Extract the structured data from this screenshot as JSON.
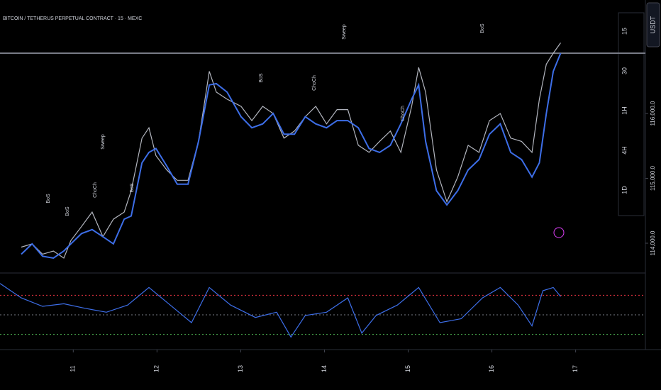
{
  "chart_data": [
    {
      "type": "line",
      "title": "BITCOIN / TETHERUS PERPETUAL CONTRACT · 15 · MEXC",
      "x": [
        6.1,
        9.2,
        12.2,
        15.3,
        18.3,
        20.3,
        23.4,
        26.4,
        29.5,
        32.5,
        35.6,
        37.6,
        40.7,
        42.7,
        44.7,
        47.8,
        50.8,
        53.9,
        56.9,
        60,
        62,
        65.1,
        69.1,
        72.2,
        75.3,
        78.3,
        81.4,
        84.4,
        87.5,
        90.5,
        93.6,
        96.6,
        99.7,
        102.7,
        105.8,
        108.8,
        111.9,
        114.9,
        118,
        120,
        122,
        125.1,
        128.1,
        131.2,
        134.2,
        137.3,
        140.3,
        143.4,
        146.4,
        149.5,
        152.5,
        154.6,
        156.6,
        158.6,
        160.7
      ],
      "series": [
        {
          "color": "#b2b5be",
          "values": [
            113940,
            113990,
            113830,
            113880,
            113770,
            114040,
            114260,
            114480,
            114100,
            114370,
            114480,
            114810,
            115620,
            115780,
            115350,
            115130,
            114970,
            114970,
            115570,
            116650,
            116330,
            116220,
            116110,
            115890,
            116110,
            116000,
            115620,
            115730,
            115950,
            116110,
            115840,
            116060,
            116060,
            115510,
            115400,
            115570,
            115730,
            115400,
            116110,
            116710,
            116330,
            115130,
            114640,
            115020,
            115510,
            115400,
            115890,
            116000,
            115620,
            115570,
            115400,
            116220,
            116760,
            116930,
            117090
          ]
        },
        {
          "color": "#3d6ee8",
          "values": [
            113830,
            113990,
            113800,
            113770,
            113880,
            113990,
            114150,
            114210,
            114100,
            113990,
            114370,
            114420,
            115240,
            115400,
            115460,
            115190,
            114910,
            114910,
            115570,
            116440,
            116460,
            116330,
            115950,
            115780,
            115840,
            116000,
            115680,
            115680,
            115950,
            115840,
            115780,
            115890,
            115890,
            115780,
            115460,
            115400,
            115510,
            115840,
            116220,
            116440,
            115570,
            114810,
            114590,
            114810,
            115130,
            115290,
            115680,
            115840,
            115400,
            115290,
            115020,
            115240,
            116000,
            116650,
            116930
          ]
        }
      ],
      "annotations": [
        "Sweep",
        "Sweep",
        "BoS",
        "BoS",
        "BoS",
        "BoS",
        "BoS",
        "ChoCh",
        "ChoCh",
        "ChoCh"
      ],
      "xlim": [
        0,
        185
      ],
      "ylim": [
        113650,
        117750
      ],
      "yticks": [
        {
          "value": 114000,
          "label": "114,000.0"
        },
        {
          "value": 115000,
          "label": "115,000.0"
        },
        {
          "value": 116000,
          "label": "116,000.0"
        }
      ],
      "levels": [
        {
          "value": 116930,
          "color": "#787b86"
        }
      ],
      "timeframes": [
        "15",
        "30",
        "1H",
        "4H",
        "1D"
      ],
      "currency": "USDT"
    },
    {
      "type": "line",
      "x": [
        0,
        6.1,
        12.2,
        18.3,
        24.4,
        30.5,
        36.6,
        42.7,
        48.8,
        54.9,
        60,
        66.1,
        73.2,
        79.3,
        83.4,
        87.5,
        93.6,
        99.7,
        103.7,
        107.8,
        113.9,
        120,
        126.1,
        132.2,
        138.3,
        143.4,
        148.5,
        152.5,
        155.6,
        158.6,
        160.7
      ],
      "series": [
        {
          "color": "#3d6ee8",
          "values": [
            98,
            76,
            63,
            67,
            60,
            54,
            65,
            92,
            65,
            38,
            92,
            65,
            46,
            54,
            16,
            49,
            54,
            76,
            22,
            49,
            65,
            92,
            38,
            44,
            76,
            92,
            65,
            33,
            87,
            92,
            78
          ]
        }
      ],
      "xlim": [
        0,
        185
      ],
      "ylim": [
        0,
        100
      ],
      "levels": [
        {
          "value": 80,
          "color": "#f23645"
        },
        {
          "value": 50,
          "color": "#787b86"
        },
        {
          "value": 20,
          "color": "#4caf50"
        }
      ],
      "xticks": [
        {
          "value": 21,
          "label": "11"
        },
        {
          "value": 45,
          "label": "12"
        },
        {
          "value": 69,
          "label": "13"
        },
        {
          "value": 93,
          "label": "14"
        },
        {
          "value": 117,
          "label": "15"
        },
        {
          "value": 141,
          "label": "16"
        },
        {
          "value": 165,
          "label": "17"
        }
      ]
    }
  ]
}
